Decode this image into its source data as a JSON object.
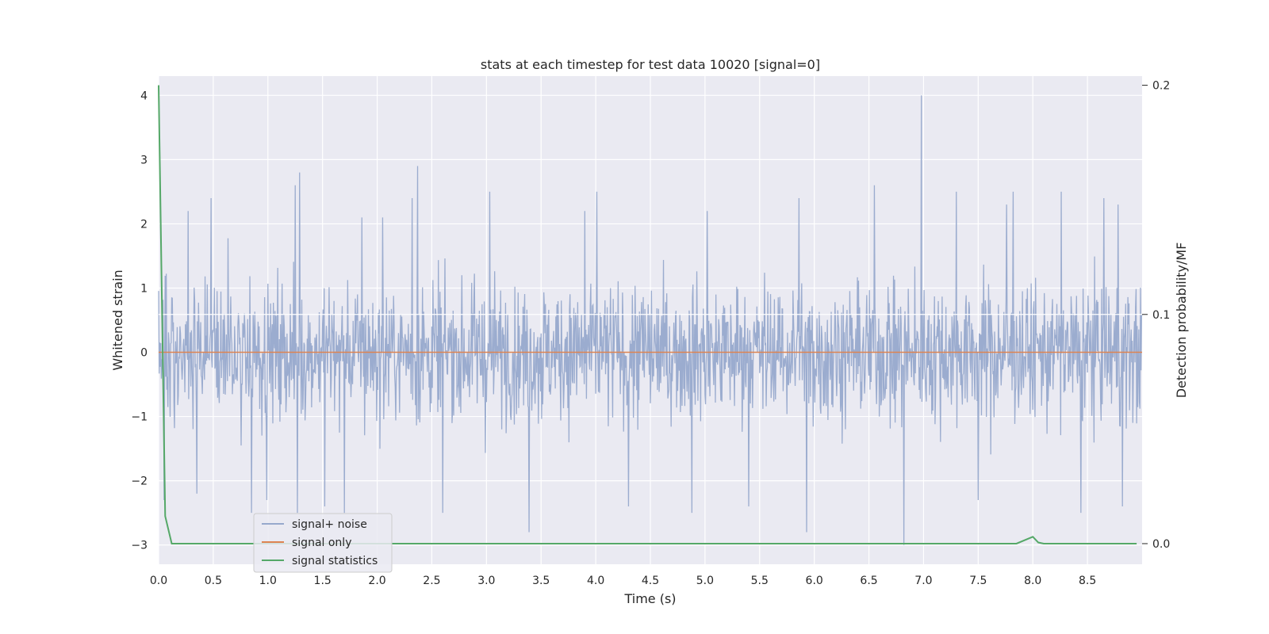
{
  "chart_data": {
    "type": "line",
    "title": "stats at each timestep for test data 10020 [signal=0]",
    "xlabel": "Time (s)",
    "ylabel": "Whitened strain",
    "y2label": "Detection probability/MF",
    "xlim": [
      0.0,
      9.0
    ],
    "ylim": [
      -3.3,
      4.3
    ],
    "y2lim": [
      -0.009,
      0.204
    ],
    "xticks": [
      "0.0",
      "0.5",
      "1.0",
      "1.5",
      "2.0",
      "2.5",
      "3.0",
      "3.5",
      "4.0",
      "4.5",
      "5.0",
      "5.5",
      "6.0",
      "6.5",
      "7.0",
      "7.5",
      "8.0",
      "8.5"
    ],
    "yticks": [
      "−3",
      "−2",
      "−1",
      "0",
      "1",
      "2",
      "3",
      "4"
    ],
    "y2ticks": [
      "0.0",
      "0.1",
      "0.2"
    ],
    "grid": true,
    "legend_position": "lower-left",
    "series": [
      {
        "name": "signal+ noise",
        "axis": "left",
        "color": "#97a9cc",
        "description_note": "",
        "duration": 9.0,
        "peaks": [
          [
            0.05,
            -2.3
          ],
          [
            0.27,
            2.2
          ],
          [
            0.35,
            -2.2
          ],
          [
            0.48,
            2.4
          ],
          [
            0.85,
            -2.5
          ],
          [
            0.99,
            -2.3
          ],
          [
            1.25,
            2.6
          ],
          [
            1.29,
            2.8
          ],
          [
            1.27,
            -2.5
          ],
          [
            1.52,
            -2.4
          ],
          [
            1.7,
            -2.5
          ],
          [
            1.86,
            2.1
          ],
          [
            2.05,
            2.1
          ],
          [
            2.37,
            2.9
          ],
          [
            2.32,
            2.4
          ],
          [
            2.6,
            -2.5
          ],
          [
            3.03,
            2.5
          ],
          [
            3.39,
            -2.8
          ],
          [
            3.9,
            2.2
          ],
          [
            4.01,
            2.5
          ],
          [
            4.3,
            -2.4
          ],
          [
            4.88,
            -2.5
          ],
          [
            5.02,
            2.2
          ],
          [
            5.4,
            -2.4
          ],
          [
            5.86,
            2.4
          ],
          [
            5.93,
            -2.8
          ],
          [
            6.55,
            2.6
          ],
          [
            6.82,
            -3.0
          ],
          [
            6.98,
            4.0
          ],
          [
            7.3,
            2.5
          ],
          [
            7.5,
            -2.3
          ],
          [
            7.76,
            2.3
          ],
          [
            7.82,
            2.5
          ],
          [
            8.26,
            2.5
          ],
          [
            8.44,
            -2.5
          ],
          [
            8.65,
            2.4
          ],
          [
            8.78,
            2.3
          ],
          [
            8.82,
            -2.4
          ]
        ]
      },
      {
        "name": "signal only",
        "axis": "left",
        "color": "#dd8452",
        "x": [
          0.0,
          9.0
        ],
        "y": [
          0.0,
          0.0
        ]
      },
      {
        "name": "signal statistics",
        "axis": "right",
        "color": "#55a868",
        "x": [
          0.0,
          0.06,
          0.12,
          7.75,
          7.85,
          7.95,
          8.0,
          8.05,
          8.1,
          8.95
        ],
        "y": [
          0.2,
          0.012,
          0.0,
          0.0,
          0.0,
          0.002,
          0.003,
          0.0005,
          0.0,
          0.0
        ]
      }
    ]
  }
}
